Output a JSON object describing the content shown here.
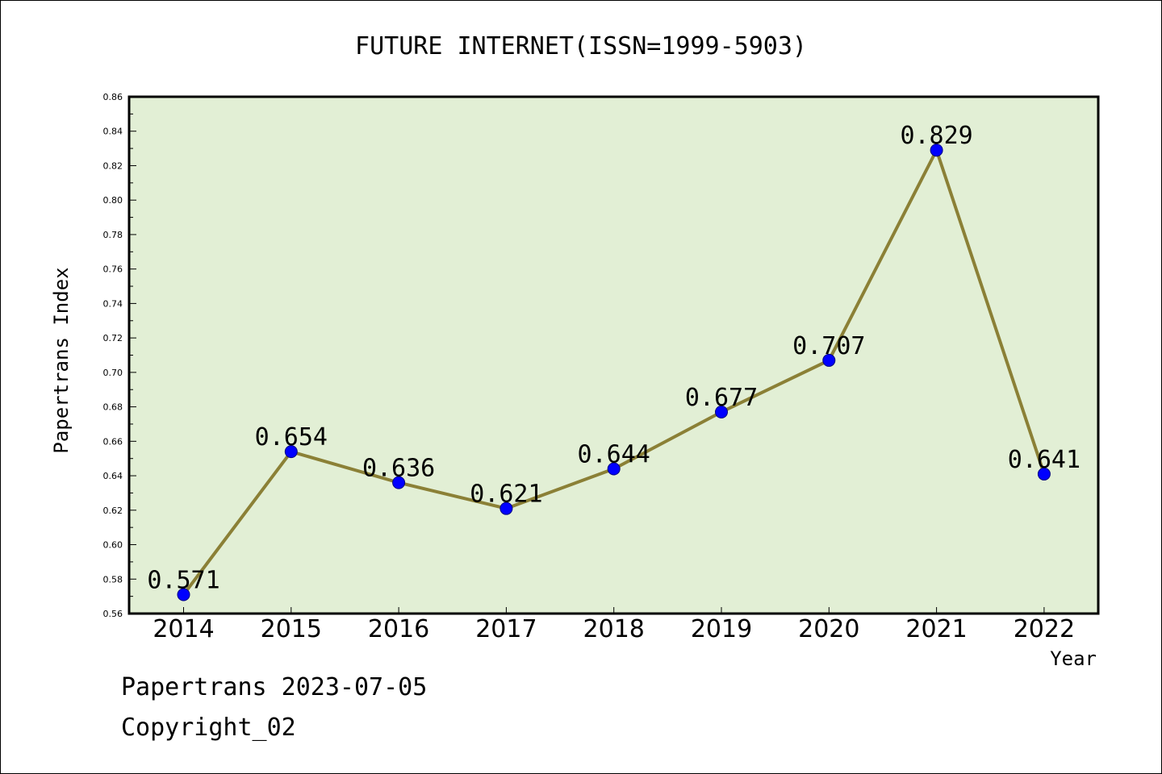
{
  "footer": {
    "line1": "Papertrans 2023-07-05",
    "line2": "Copyright_02"
  },
  "colors": {
    "plot_background": "#e2efd5",
    "line": "#8b8036",
    "marker_fill": "#0000ff",
    "marker_edge": "#000080"
  },
  "chart_data": {
    "type": "line",
    "title": "FUTURE INTERNET(ISSN=1999-5903)",
    "xlabel": "Year",
    "ylabel": "Papertrans Index",
    "categories": [
      "2014",
      "2015",
      "2016",
      "2017",
      "2018",
      "2019",
      "2020",
      "2021",
      "2022"
    ],
    "series": [
      {
        "values": [
          0.571,
          0.654,
          0.636,
          0.621,
          0.644,
          0.677,
          0.707,
          0.829,
          0.641
        ],
        "labels": [
          "0.571",
          "0.654",
          "0.636",
          "0.621",
          "0.644",
          "0.677",
          "0.707",
          "0.829",
          "0.641"
        ]
      }
    ],
    "ylim": [
      0.56,
      0.86
    ],
    "yticks": [
      "0.56",
      "0.58",
      "0.60",
      "0.62",
      "0.64",
      "0.66",
      "0.68",
      "0.70",
      "0.72",
      "0.74",
      "0.76",
      "0.78",
      "0.80",
      "0.82",
      "0.84",
      "0.86"
    ],
    "grid": false,
    "legend": "none"
  }
}
